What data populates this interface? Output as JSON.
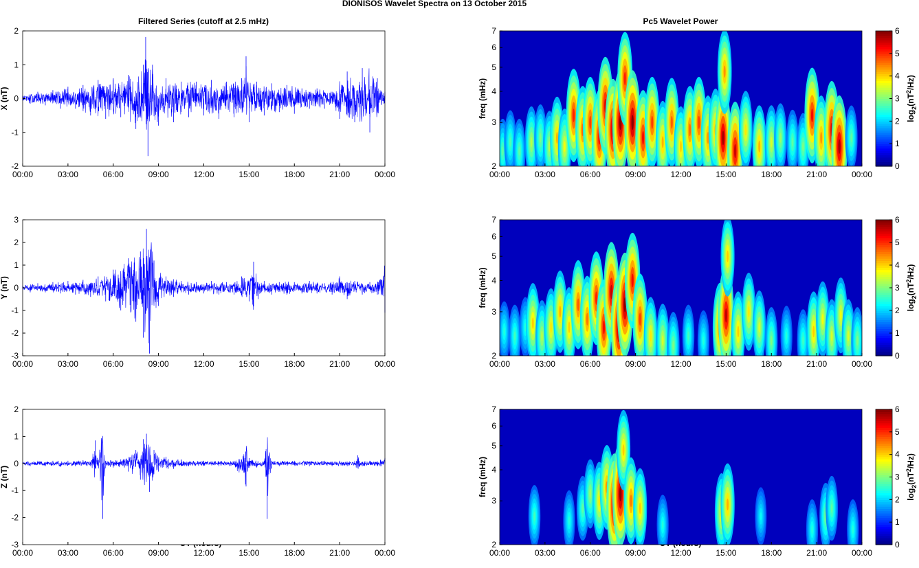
{
  "figure": {
    "title": "DIONISOS Wavelet Spectra on 13 October   2015",
    "left_title": "Filtered Series (cutoff at 2.5 mHz)",
    "right_title": "Pc5 Wavelet Power",
    "xlabel": "UT (hours)"
  },
  "chart_data": [
    {
      "type": "line",
      "panel": "x-series",
      "ylabel": "X (nT)",
      "xlim": [
        0,
        24
      ],
      "ylim": [
        -2,
        2
      ],
      "yticks": [
        -2,
        -1,
        0,
        1,
        2
      ],
      "xtick_labels": [
        "00:00",
        "03:00",
        "06:00",
        "09:00",
        "12:00",
        "15:00",
        "18:00",
        "21:00",
        "00:00"
      ],
      "color": "#0000ff",
      "series": [
        {
          "x": [
            0,
            0.5,
            1,
            1.5,
            2,
            2.5,
            3,
            3.5,
            4,
            4.5,
            5,
            5.5,
            6,
            6.5,
            7,
            7.5,
            8,
            8.15,
            8.3,
            8.6,
            9,
            9.5,
            10,
            10.5,
            11,
            11.5,
            12,
            12.5,
            13,
            13.5,
            14,
            14.5,
            14.8,
            15,
            15.5,
            16,
            16.5,
            17,
            17.5,
            18,
            18.5,
            19,
            19.5,
            20,
            20.5,
            21,
            21.5,
            22,
            22.5,
            23,
            23.5,
            24
          ],
          "y": [
            0.1,
            -0.15,
            0.2,
            -0.2,
            0.25,
            -0.3,
            0.35,
            -0.3,
            0.4,
            -0.5,
            0.55,
            -0.6,
            0.6,
            -0.55,
            0.7,
            -0.9,
            1.0,
            1.82,
            -1.7,
            1.0,
            -0.8,
            0.6,
            -0.7,
            0.5,
            -0.55,
            0.5,
            -0.5,
            0.55,
            -0.6,
            0.5,
            -0.55,
            0.6,
            1.25,
            -0.7,
            0.5,
            -0.5,
            0.45,
            -0.4,
            0.4,
            -0.45,
            0.3,
            -0.3,
            0.3,
            -0.3,
            0.2,
            -0.6,
            0.8,
            -0.7,
            0.9,
            -1.0,
            0.6,
            0.2
          ]
        }
      ]
    },
    {
      "type": "line",
      "panel": "y-series",
      "ylabel": "Y (nT)",
      "xlim": [
        0,
        24
      ],
      "ylim": [
        -3,
        3
      ],
      "yticks": [
        -3,
        -2,
        -1,
        0,
        1,
        2,
        3
      ],
      "xtick_labels": [
        "00:00",
        "03:00",
        "06:00",
        "09:00",
        "12:00",
        "15:00",
        "18:00",
        "21:00",
        "00:00"
      ],
      "color": "#0000ff",
      "series": [
        {
          "x": [
            0,
            0.5,
            1,
            1.5,
            2,
            2.5,
            3,
            3.5,
            4,
            4.5,
            5,
            5.5,
            6,
            6.5,
            7,
            7.5,
            7.8,
            8.0,
            8.2,
            8.4,
            8.7,
            9,
            9.5,
            10,
            10.5,
            11,
            11.5,
            12,
            12.5,
            13,
            13.5,
            14,
            14.5,
            15,
            15.3,
            15.6,
            16,
            16.5,
            17,
            17.5,
            18,
            18.5,
            19,
            19.5,
            20,
            20.5,
            21,
            21.5,
            22,
            22.5,
            23,
            23.5,
            24
          ],
          "y": [
            0.1,
            -0.2,
            0.2,
            -0.2,
            0.25,
            -0.25,
            0.3,
            -0.3,
            0.35,
            -0.4,
            0.5,
            -0.6,
            0.8,
            -1.0,
            1.3,
            -1.5,
            1.6,
            -2.2,
            2.6,
            -2.9,
            1.2,
            -0.8,
            0.5,
            -0.4,
            0.3,
            -0.3,
            0.25,
            -0.25,
            0.3,
            -0.3,
            0.25,
            -0.3,
            0.5,
            -0.6,
            1.15,
            -0.5,
            0.3,
            -0.3,
            0.25,
            -0.3,
            0.25,
            -0.25,
            0.3,
            -0.25,
            0.2,
            -0.3,
            0.5,
            -0.5,
            0.3,
            -0.3,
            0.25,
            -0.3,
            -1.1
          ]
        }
      ]
    },
    {
      "type": "line",
      "panel": "z-series",
      "ylabel": "Z (nT)",
      "xlim": [
        0,
        24
      ],
      "ylim": [
        -3,
        2
      ],
      "yticks": [
        -3,
        -2,
        -1,
        0,
        1,
        2
      ],
      "xtick_labels": [
        "00:00",
        "03:00",
        "06:00",
        "09:00",
        "12:00",
        "15:00",
        "18:00",
        "21:00",
        "00:00"
      ],
      "color": "#0000ff",
      "series": [
        {
          "x": [
            0,
            0.5,
            1,
            1.5,
            2,
            2.5,
            3,
            3.5,
            4,
            4.5,
            4.8,
            5,
            5.3,
            5.5,
            6,
            6.5,
            7,
            7.5,
            7.8,
            8.0,
            8.2,
            8.4,
            8.7,
            9,
            9.5,
            10,
            10.5,
            11,
            12,
            13,
            14,
            14.8,
            15,
            15.5,
            16,
            16.2,
            16.5,
            17,
            18,
            19,
            20,
            20.5,
            21,
            21.5,
            22,
            22.2,
            22.5,
            23,
            23.5,
            24
          ],
          "y": [
            0.05,
            -0.1,
            0.1,
            -0.1,
            0.1,
            -0.12,
            0.1,
            -0.1,
            0.12,
            -0.1,
            0.85,
            -0.1,
            -2.05,
            0.1,
            -0.15,
            0.15,
            -0.3,
            0.5,
            -0.6,
            0.9,
            1.1,
            -1.05,
            0.5,
            -0.3,
            0.25,
            -0.2,
            0.15,
            -0.1,
            0.1,
            -0.1,
            0.1,
            -0.85,
            0.2,
            -0.15,
            0.1,
            -2.05,
            0.1,
            -0.1,
            0.1,
            -0.1,
            0.1,
            -0.1,
            0.1,
            -0.1,
            0.1,
            0.3,
            -0.1,
            0.1,
            -0.1,
            0.2
          ]
        }
      ]
    },
    {
      "type": "heatmap",
      "panel": "x-power",
      "ylabel": "freq (mHz)",
      "y_scale": "log",
      "xlim": [
        0,
        24
      ],
      "ylim": [
        2,
        7
      ],
      "yticks": [
        2,
        3,
        4,
        5,
        6,
        7
      ],
      "xtick_labels": [
        "00:00",
        "03:00",
        "06:00",
        "09:00",
        "12:00",
        "15:00",
        "18:00",
        "21:00",
        "00:00"
      ],
      "colorbar": {
        "label": "log2(nT2/Hz)",
        "min": 0,
        "max": 6,
        "ticks": [
          0,
          1,
          2,
          3,
          4,
          5,
          6
        ],
        "colormap": "jet"
      },
      "blobs": [
        {
          "t": 0.2,
          "f": 2.3,
          "p": 2.4
        },
        {
          "t": 0.7,
          "f": 2.5,
          "p": 2.3
        },
        {
          "t": 1.3,
          "f": 2.3,
          "p": 2.4
        },
        {
          "t": 2.1,
          "f": 2.5,
          "p": 3.0
        },
        {
          "t": 2.7,
          "f": 2.6,
          "p": 2.6
        },
        {
          "t": 3.3,
          "f": 2.4,
          "p": 3.0
        },
        {
          "t": 3.8,
          "f": 2.6,
          "p": 4.0
        },
        {
          "t": 4.3,
          "f": 2.4,
          "p": 3.4
        },
        {
          "t": 4.9,
          "f": 3.2,
          "p": 5.0
        },
        {
          "t": 5.5,
          "f": 2.8,
          "p": 4.5
        },
        {
          "t": 6.0,
          "f": 3.0,
          "p": 4.8
        },
        {
          "t": 6.6,
          "f": 2.6,
          "p": 5.2
        },
        {
          "t": 7.0,
          "f": 3.5,
          "p": 5.4
        },
        {
          "t": 7.5,
          "f": 2.8,
          "p": 5.8
        },
        {
          "t": 8.0,
          "f": 3.0,
          "p": 6.0
        },
        {
          "t": 8.3,
          "f": 4.5,
          "p": 5.0
        },
        {
          "t": 8.8,
          "f": 3.0,
          "p": 6.0
        },
        {
          "t": 9.5,
          "f": 2.6,
          "p": 5.2
        },
        {
          "t": 10.1,
          "f": 3.0,
          "p": 4.8
        },
        {
          "t": 10.8,
          "f": 2.5,
          "p": 4.0
        },
        {
          "t": 11.4,
          "f": 3.0,
          "p": 4.6
        },
        {
          "t": 12.0,
          "f": 2.4,
          "p": 3.8
        },
        {
          "t": 12.6,
          "f": 2.8,
          "p": 4.5
        },
        {
          "t": 13.2,
          "f": 3.0,
          "p": 4.8
        },
        {
          "t": 13.8,
          "f": 2.6,
          "p": 4.2
        },
        {
          "t": 14.3,
          "f": 2.8,
          "p": 4.0
        },
        {
          "t": 14.8,
          "f": 2.6,
          "p": 5.8
        },
        {
          "t": 14.9,
          "f": 4.8,
          "p": 4.2
        },
        {
          "t": 15.6,
          "f": 2.3,
          "p": 5.5
        },
        {
          "t": 16.3,
          "f": 2.8,
          "p": 3.6
        },
        {
          "t": 17.2,
          "f": 2.4,
          "p": 4.0
        },
        {
          "t": 18.0,
          "f": 2.5,
          "p": 3.2
        },
        {
          "t": 18.6,
          "f": 2.6,
          "p": 2.8
        },
        {
          "t": 19.4,
          "f": 2.5,
          "p": 2.4
        },
        {
          "t": 20.1,
          "f": 2.4,
          "p": 2.6
        },
        {
          "t": 20.7,
          "f": 3.2,
          "p": 5.2
        },
        {
          "t": 21.3,
          "f": 2.6,
          "p": 4.2
        },
        {
          "t": 22.0,
          "f": 2.8,
          "p": 5.4
        },
        {
          "t": 22.5,
          "f": 2.4,
          "p": 5.8
        },
        {
          "t": 23.3,
          "f": 2.6,
          "p": 2.4
        }
      ]
    },
    {
      "type": "heatmap",
      "panel": "y-power",
      "ylabel": "freq (mHz)",
      "y_scale": "log",
      "xlim": [
        0,
        24
      ],
      "ylim": [
        2,
        7
      ],
      "yticks": [
        2,
        3,
        4,
        5,
        6,
        7
      ],
      "xtick_labels": [
        "00:00",
        "03:00",
        "06:00",
        "09:00",
        "12:00",
        "15:00",
        "18:00",
        "21:00",
        "00:00"
      ],
      "colorbar": {
        "label": "log2(nT2/Hz)",
        "min": 0,
        "max": 6,
        "ticks": [
          0,
          1,
          2,
          3,
          4,
          5,
          6
        ],
        "colormap": "jet"
      },
      "blobs": [
        {
          "t": 0.3,
          "f": 2.5,
          "p": 2.0
        },
        {
          "t": 1.0,
          "f": 2.4,
          "p": 2.2
        },
        {
          "t": 1.7,
          "f": 2.6,
          "p": 2.0
        },
        {
          "t": 2.2,
          "f": 2.7,
          "p": 3.8
        },
        {
          "t": 2.8,
          "f": 2.4,
          "p": 3.0
        },
        {
          "t": 3.4,
          "f": 2.6,
          "p": 3.6
        },
        {
          "t": 4.0,
          "f": 3.0,
          "p": 4.0
        },
        {
          "t": 4.6,
          "f": 2.6,
          "p": 3.8
        },
        {
          "t": 5.2,
          "f": 3.2,
          "p": 4.6
        },
        {
          "t": 5.8,
          "f": 2.8,
          "p": 4.4
        },
        {
          "t": 6.4,
          "f": 3.4,
          "p": 5.0
        },
        {
          "t": 6.9,
          "f": 2.6,
          "p": 5.2
        },
        {
          "t": 7.4,
          "f": 3.6,
          "p": 5.6
        },
        {
          "t": 7.9,
          "f": 2.6,
          "p": 6.0
        },
        {
          "t": 8.3,
          "f": 3.2,
          "p": 6.0
        },
        {
          "t": 8.8,
          "f": 4.0,
          "p": 5.2
        },
        {
          "t": 9.3,
          "f": 2.8,
          "p": 4.8
        },
        {
          "t": 10.0,
          "f": 2.4,
          "p": 3.6
        },
        {
          "t": 10.8,
          "f": 2.3,
          "p": 3.2
        },
        {
          "t": 11.5,
          "f": 2.2,
          "p": 2.6
        },
        {
          "t": 12.5,
          "f": 2.4,
          "p": 2.2
        },
        {
          "t": 13.5,
          "f": 2.3,
          "p": 2.0
        },
        {
          "t": 14.6,
          "f": 2.6,
          "p": 4.6
        },
        {
          "t": 15.0,
          "f": 2.9,
          "p": 5.6
        },
        {
          "t": 15.1,
          "f": 5.0,
          "p": 3.8
        },
        {
          "t": 15.8,
          "f": 2.5,
          "p": 3.8
        },
        {
          "t": 16.5,
          "f": 3.0,
          "p": 3.6
        },
        {
          "t": 17.2,
          "f": 2.6,
          "p": 3.2
        },
        {
          "t": 18.0,
          "f": 2.3,
          "p": 2.6
        },
        {
          "t": 19.0,
          "f": 2.4,
          "p": 2.0
        },
        {
          "t": 20.1,
          "f": 2.3,
          "p": 2.2
        },
        {
          "t": 20.8,
          "f": 2.5,
          "p": 3.8
        },
        {
          "t": 21.4,
          "f": 2.8,
          "p": 3.4
        },
        {
          "t": 22.0,
          "f": 2.4,
          "p": 3.2
        },
        {
          "t": 22.6,
          "f": 2.9,
          "p": 3.4
        },
        {
          "t": 23.1,
          "f": 2.4,
          "p": 3.2
        },
        {
          "t": 23.7,
          "f": 2.3,
          "p": 2.6
        }
      ]
    },
    {
      "type": "heatmap",
      "panel": "z-power",
      "ylabel": "freq (mHz)",
      "y_scale": "log",
      "xlim": [
        0,
        24
      ],
      "ylim": [
        2,
        7
      ],
      "yticks": [
        2,
        3,
        4,
        5,
        6,
        7
      ],
      "xtick_labels": [
        "00:00",
        "03:00",
        "06:00",
        "09:00",
        "12:00",
        "15:00",
        "18:00",
        "21:00",
        "00:00"
      ],
      "colorbar": {
        "label": "log2(nT2/Hz)",
        "min": 0,
        "max": 6,
        "ticks": [
          0,
          1,
          2,
          3,
          4,
          5,
          6
        ],
        "colormap": "jet"
      },
      "blobs": [
        {
          "t": 2.3,
          "f": 2.6,
          "p": 2.2
        },
        {
          "t": 4.6,
          "f": 2.5,
          "p": 2.0
        },
        {
          "t": 5.5,
          "f": 2.8,
          "p": 2.4
        },
        {
          "t": 6.0,
          "f": 3.2,
          "p": 2.8
        },
        {
          "t": 6.6,
          "f": 3.0,
          "p": 3.6
        },
        {
          "t": 7.1,
          "f": 3.4,
          "p": 4.2
        },
        {
          "t": 7.6,
          "f": 2.9,
          "p": 5.8
        },
        {
          "t": 8.0,
          "f": 3.2,
          "p": 6.0
        },
        {
          "t": 8.2,
          "f": 4.8,
          "p": 3.8
        },
        {
          "t": 8.7,
          "f": 3.0,
          "p": 4.4
        },
        {
          "t": 9.3,
          "f": 2.8,
          "p": 3.8
        },
        {
          "t": 10.8,
          "f": 2.4,
          "p": 2.0
        },
        {
          "t": 14.7,
          "f": 2.7,
          "p": 3.6
        },
        {
          "t": 15.1,
          "f": 2.9,
          "p": 4.0
        },
        {
          "t": 17.3,
          "f": 2.6,
          "p": 1.8
        },
        {
          "t": 20.7,
          "f": 2.3,
          "p": 2.0
        },
        {
          "t": 21.6,
          "f": 2.6,
          "p": 2.6
        },
        {
          "t": 22.0,
          "f": 2.8,
          "p": 2.4
        },
        {
          "t": 23.4,
          "f": 2.3,
          "p": 2.0
        }
      ]
    }
  ]
}
